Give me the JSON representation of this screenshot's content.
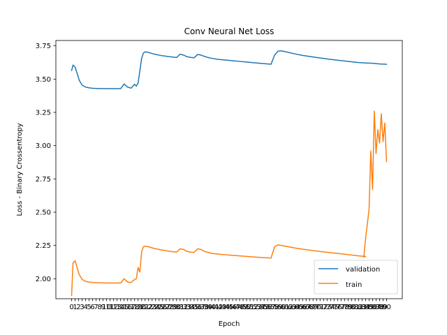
{
  "chart_data": {
    "type": "line",
    "title": "Conv Neural Net Loss",
    "xlabel": "Epoch",
    "ylabel": "Loss - Binary Crossentropy",
    "xlim": [
      -4.5,
      94.5
    ],
    "ylim": [
      1.85,
      3.79
    ],
    "yticks": [
      2.0,
      2.25,
      2.5,
      2.75,
      3.0,
      3.25,
      3.5,
      3.75
    ],
    "ytick_labels": [
      "2.00",
      "2.25",
      "2.50",
      "2.75",
      "3.00",
      "3.25",
      "3.50",
      "3.75"
    ],
    "xticks": [
      0,
      1,
      2,
      3,
      4,
      5,
      6,
      7,
      8,
      9,
      10,
      11,
      12,
      13,
      14,
      15,
      16,
      17,
      18,
      19,
      20,
      21,
      22,
      23,
      24,
      25,
      26,
      27,
      28,
      29,
      30,
      31,
      32,
      33,
      34,
      35,
      36,
      37,
      38,
      39,
      40,
      41,
      42,
      43,
      44,
      45,
      46,
      47,
      48,
      49,
      50,
      51,
      52,
      53,
      54,
      55,
      56,
      57,
      58,
      59,
      60,
      61,
      62,
      63,
      64,
      65,
      66,
      67,
      68,
      69,
      70,
      71,
      72,
      73,
      74,
      75,
      76,
      77,
      78,
      79,
      80,
      81,
      82,
      83,
      84,
      85,
      86,
      87,
      88,
      89,
      90
    ],
    "xtick_labels": [
      "0",
      "1",
      "2",
      "3",
      "4",
      "5",
      "6",
      "7",
      "8",
      "9",
      "10",
      "11",
      "12",
      "13",
      "14",
      "15",
      "16",
      "17",
      "18",
      "19",
      "20",
      "21",
      "22",
      "23",
      "24",
      "25",
      "26",
      "27",
      "28",
      "29",
      "30",
      "31",
      "32",
      "33",
      "34",
      "35",
      "36",
      "37",
      "38",
      "39",
      "40",
      "41",
      "42",
      "43",
      "44",
      "45",
      "46",
      "47",
      "48",
      "49",
      "50",
      "51",
      "52",
      "53",
      "54",
      "55",
      "56",
      "57",
      "58",
      "59",
      "60",
      "61",
      "62",
      "63",
      "64",
      "65",
      "66",
      "67",
      "68",
      "69",
      "70",
      "71",
      "72",
      "73",
      "74",
      "75",
      "76",
      "77",
      "78",
      "79",
      "80",
      "81",
      "82",
      "83",
      "84",
      "85",
      "86",
      "87",
      "88",
      "89",
      "90"
    ],
    "grid": false,
    "legend_position": "lower-right",
    "series": [
      {
        "name": "validation",
        "color": "#1f77b4",
        "x": [
          0,
          0.4,
          1,
          1.6,
          2.2,
          3,
          4,
          5,
          6,
          8,
          10,
          12,
          14,
          15,
          16,
          17,
          18,
          18.5,
          19,
          20,
          20.5,
          21,
          22,
          23,
          24,
          26,
          28,
          30,
          31,
          32,
          33,
          34,
          35,
          36,
          37,
          38,
          39,
          40,
          42,
          44,
          46,
          48,
          50,
          52,
          54,
          56,
          57,
          58,
          59,
          60,
          62,
          64,
          66,
          68,
          70,
          72,
          74,
          76,
          78,
          80,
          82,
          84,
          86,
          88,
          90
        ],
        "values": [
          3.565,
          3.605,
          3.59,
          3.54,
          3.49,
          3.455,
          3.44,
          3.434,
          3.431,
          3.429,
          3.428,
          3.428,
          3.428,
          3.463,
          3.44,
          3.432,
          3.461,
          3.448,
          3.47,
          3.655,
          3.695,
          3.705,
          3.7,
          3.692,
          3.685,
          3.675,
          3.668,
          3.662,
          3.687,
          3.68,
          3.668,
          3.663,
          3.66,
          3.685,
          3.68,
          3.67,
          3.662,
          3.656,
          3.648,
          3.643,
          3.638,
          3.633,
          3.628,
          3.623,
          3.618,
          3.614,
          3.612,
          3.68,
          3.71,
          3.712,
          3.7,
          3.688,
          3.678,
          3.67,
          3.662,
          3.655,
          3.648,
          3.642,
          3.636,
          3.63,
          3.624,
          3.621,
          3.619,
          3.614,
          3.611
        ]
      },
      {
        "name": "train",
        "color": "#ff7f0e",
        "x": [
          0,
          0.4,
          1,
          1.6,
          2.2,
          3,
          4,
          5,
          6,
          8,
          10,
          12,
          14,
          15,
          16,
          17,
          18,
          18.5,
          19,
          19.5,
          20,
          20.5,
          21,
          22,
          23,
          24,
          26,
          28,
          30,
          31,
          32,
          33,
          34,
          35,
          36,
          37,
          38,
          39,
          40,
          42,
          44,
          46,
          48,
          50,
          52,
          54,
          56,
          57,
          58,
          59,
          60,
          62,
          64,
          66,
          68,
          70,
          72,
          74,
          76,
          78,
          80,
          82,
          84,
          83.5,
          84,
          85,
          85.5,
          86,
          86.5,
          87,
          87.5,
          88,
          88.5,
          89,
          89.5,
          90
        ],
        "values": [
          1.875,
          2.12,
          2.135,
          2.08,
          2.03,
          1.995,
          1.98,
          1.975,
          1.972,
          1.969,
          1.968,
          1.968,
          1.968,
          2.0,
          1.975,
          1.972,
          1.995,
          2.0,
          2.085,
          2.05,
          2.2,
          2.24,
          2.245,
          2.24,
          2.232,
          2.225,
          2.215,
          2.206,
          2.2,
          2.225,
          2.22,
          2.205,
          2.2,
          2.198,
          2.225,
          2.22,
          2.205,
          2.198,
          2.19,
          2.185,
          2.18,
          2.176,
          2.172,
          2.168,
          2.164,
          2.16,
          2.157,
          2.156,
          2.24,
          2.255,
          2.25,
          2.24,
          2.23,
          2.222,
          2.215,
          2.208,
          2.202,
          2.196,
          2.19,
          2.184,
          2.178,
          2.172,
          2.167,
          2.163,
          2.3,
          2.52,
          2.96,
          2.67,
          3.26,
          2.94,
          3.12,
          3.02,
          3.24,
          3.03,
          3.17,
          2.88
        ]
      }
    ]
  }
}
